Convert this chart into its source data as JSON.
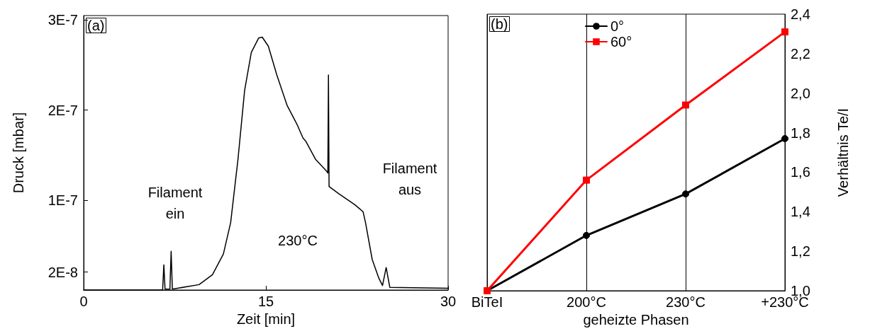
{
  "chart_data": [
    {
      "type": "line",
      "title": "(a)",
      "xlabel": "Zeit [min]",
      "ylabel": "Druck [mbar]",
      "xlim": [
        0,
        30
      ],
      "xticks": [
        0,
        15,
        30
      ],
      "ylim": [
        0,
        3.05e-07
      ],
      "yticks": [
        {
          "value": 2e-08,
          "label": "2E-8"
        },
        {
          "value": 1e-07,
          "label": "1E-7"
        },
        {
          "value": 2e-07,
          "label": "2E-7"
        },
        {
          "value": 3e-07,
          "label": "3E-7"
        }
      ],
      "grid": false,
      "legend": false,
      "marker": "none",
      "line_style": "solid",
      "series": [
        {
          "color": "#000000",
          "x": [
            0,
            6.25,
            6.5,
            6.6,
            6.7,
            7.1,
            7.2,
            7.3,
            9.5,
            10.6,
            11.5,
            12.1,
            12.7,
            13.25,
            13.8,
            14.4,
            14.7,
            15.2,
            15.9,
            16.75,
            17.6,
            18.05,
            18.3,
            19.1,
            20.0,
            20.1,
            20.15,
            20.2,
            21.0,
            22.3,
            23.0,
            23.2,
            23.75,
            24.3,
            24.6,
            24.9,
            25.2,
            30
          ],
          "values": [
            0,
            0,
            0,
            2.8e-08,
            1e-09,
            1e-09,
            4.3e-08,
            1e-09,
            6e-09,
            1.7e-08,
            4e-08,
            7.5e-08,
            1.45e-07,
            2.22e-07,
            2.64e-07,
            2.8e-07,
            2.81e-07,
            2.71e-07,
            2.39e-07,
            2.05e-07,
            1.83e-07,
            1.69e-07,
            1.65e-07,
            1.45e-07,
            1.32e-07,
            1.3e-07,
            2.39e-07,
            1.15e-07,
            1.07e-07,
            9.5e-08,
            8.7e-08,
            7.5e-08,
            3.4e-08,
            1.3e-08,
            5e-09,
            2.5e-08,
            3e-09,
            2e-09
          ]
        }
      ],
      "annotations": [
        "Filament\nein",
        "230°C",
        "Filament\naus"
      ]
    },
    {
      "type": "line",
      "title": "(b)",
      "xlabel": "geheizte Phasen",
      "ylabel": "Verhältnis Te/I",
      "categories": [
        "BiTeI",
        "200°C",
        "230°C",
        "+230°C"
      ],
      "ylim": [
        1.0,
        2.4
      ],
      "yticks": [
        {
          "value": 1.0,
          "label": "1,0"
        },
        {
          "value": 1.2,
          "label": "1,2"
        },
        {
          "value": 1.4,
          "label": "1,4"
        },
        {
          "value": 1.6,
          "label": "1,6"
        },
        {
          "value": 1.8,
          "label": "1,8"
        },
        {
          "value": 2.0,
          "label": "2,0"
        },
        {
          "value": 2.2,
          "label": "2,2"
        },
        {
          "value": 2.4,
          "label": "2,4"
        }
      ],
      "grid": "x",
      "legend": "top",
      "line_style": "solid",
      "series": [
        {
          "name": "0°",
          "color": "#000000",
          "marker": "circle",
          "values": [
            1.0,
            1.28,
            1.49,
            1.77
          ]
        },
        {
          "name": "60°",
          "color": "#ff0000",
          "marker": "square",
          "values": [
            1.0,
            1.56,
            1.94,
            2.31
          ]
        }
      ]
    }
  ]
}
